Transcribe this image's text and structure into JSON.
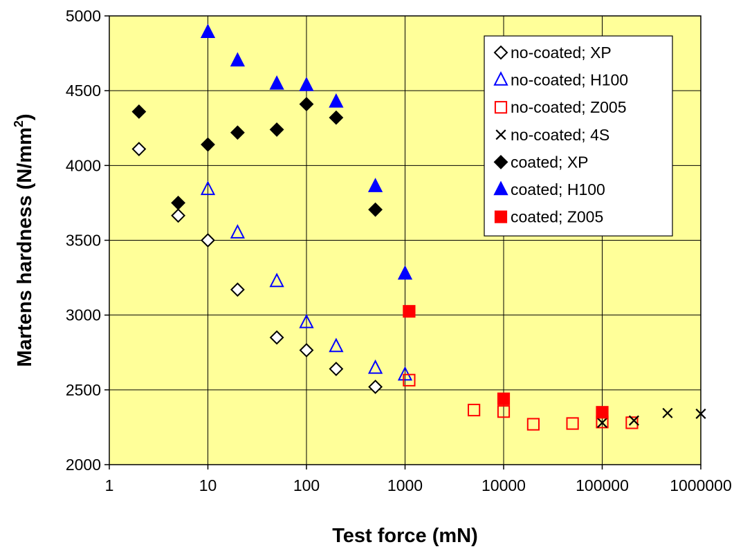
{
  "chart_data": {
    "type": "scatter",
    "title": "",
    "xlabel": "Test force (mN)",
    "ylabel_main": "Martens hardness (N/mm",
    "ylabel_sup": "2",
    "ylabel_close": ")",
    "xscale": "log",
    "xlim": [
      1,
      1000000
    ],
    "ylim": [
      2000,
      5000
    ],
    "x_ticks": [
      1,
      10,
      100,
      1000,
      10000,
      100000,
      1000000
    ],
    "x_tick_labels": [
      "1",
      "10",
      "100",
      "1000",
      "10000",
      "100000",
      "1000000"
    ],
    "y_ticks": [
      2000,
      2500,
      3000,
      3500,
      4000,
      4500,
      5000
    ],
    "y_tick_labels": [
      "2000",
      "2500",
      "3000",
      "3500",
      "4000",
      "4500",
      "5000"
    ],
    "grid": true,
    "legend_position": "top-right",
    "plot_background": "#ffff99",
    "series": [
      {
        "name": "no-coated; XP",
        "marker": "diamond",
        "filled": false,
        "color": "#000000",
        "x": [
          2,
          5,
          10,
          20,
          50,
          100,
          200,
          500
        ],
        "y": [
          4110,
          3665,
          3500,
          3170,
          2850,
          2765,
          2640,
          2520
        ]
      },
      {
        "name": "no-coated; H100",
        "marker": "triangle",
        "filled": false,
        "color": "#0000ff",
        "x": [
          10,
          20,
          50,
          100,
          200,
          500,
          1000
        ],
        "y": [
          3840,
          3550,
          3225,
          2950,
          2790,
          2645,
          2600
        ]
      },
      {
        "name": "no-coated; Z005",
        "marker": "square",
        "filled": false,
        "color": "#ff0000",
        "x": [
          1100,
          5000,
          10000,
          20000,
          50000,
          100000,
          200000
        ],
        "y": [
          2565,
          2365,
          2355,
          2270,
          2275,
          2285,
          2280
        ]
      },
      {
        "name": "no-coated; 4S",
        "marker": "x",
        "filled": false,
        "color": "#000000",
        "x": [
          100000,
          210000,
          460000,
          1000000
        ],
        "y": [
          2280,
          2295,
          2345,
          2340
        ]
      },
      {
        "name": "coated; XP",
        "marker": "diamond",
        "filled": true,
        "color": "#000000",
        "x": [
          2,
          5,
          10,
          20,
          50,
          100,
          200,
          500
        ],
        "y": [
          4360,
          3750,
          4140,
          4220,
          4240,
          4410,
          4320,
          3705
        ]
      },
      {
        "name": "coated; H100",
        "marker": "triangle",
        "filled": true,
        "color": "#0000ff",
        "x": [
          10,
          20,
          50,
          100,
          200,
          500,
          1000
        ],
        "y": [
          4890,
          4700,
          4545,
          4535,
          4425,
          3860,
          3275
        ]
      },
      {
        "name": "coated; Z005",
        "marker": "square",
        "filled": true,
        "color": "#ff0000",
        "x": [
          1100,
          10000,
          100000
        ],
        "y": [
          3025,
          2440,
          2350
        ]
      }
    ]
  }
}
